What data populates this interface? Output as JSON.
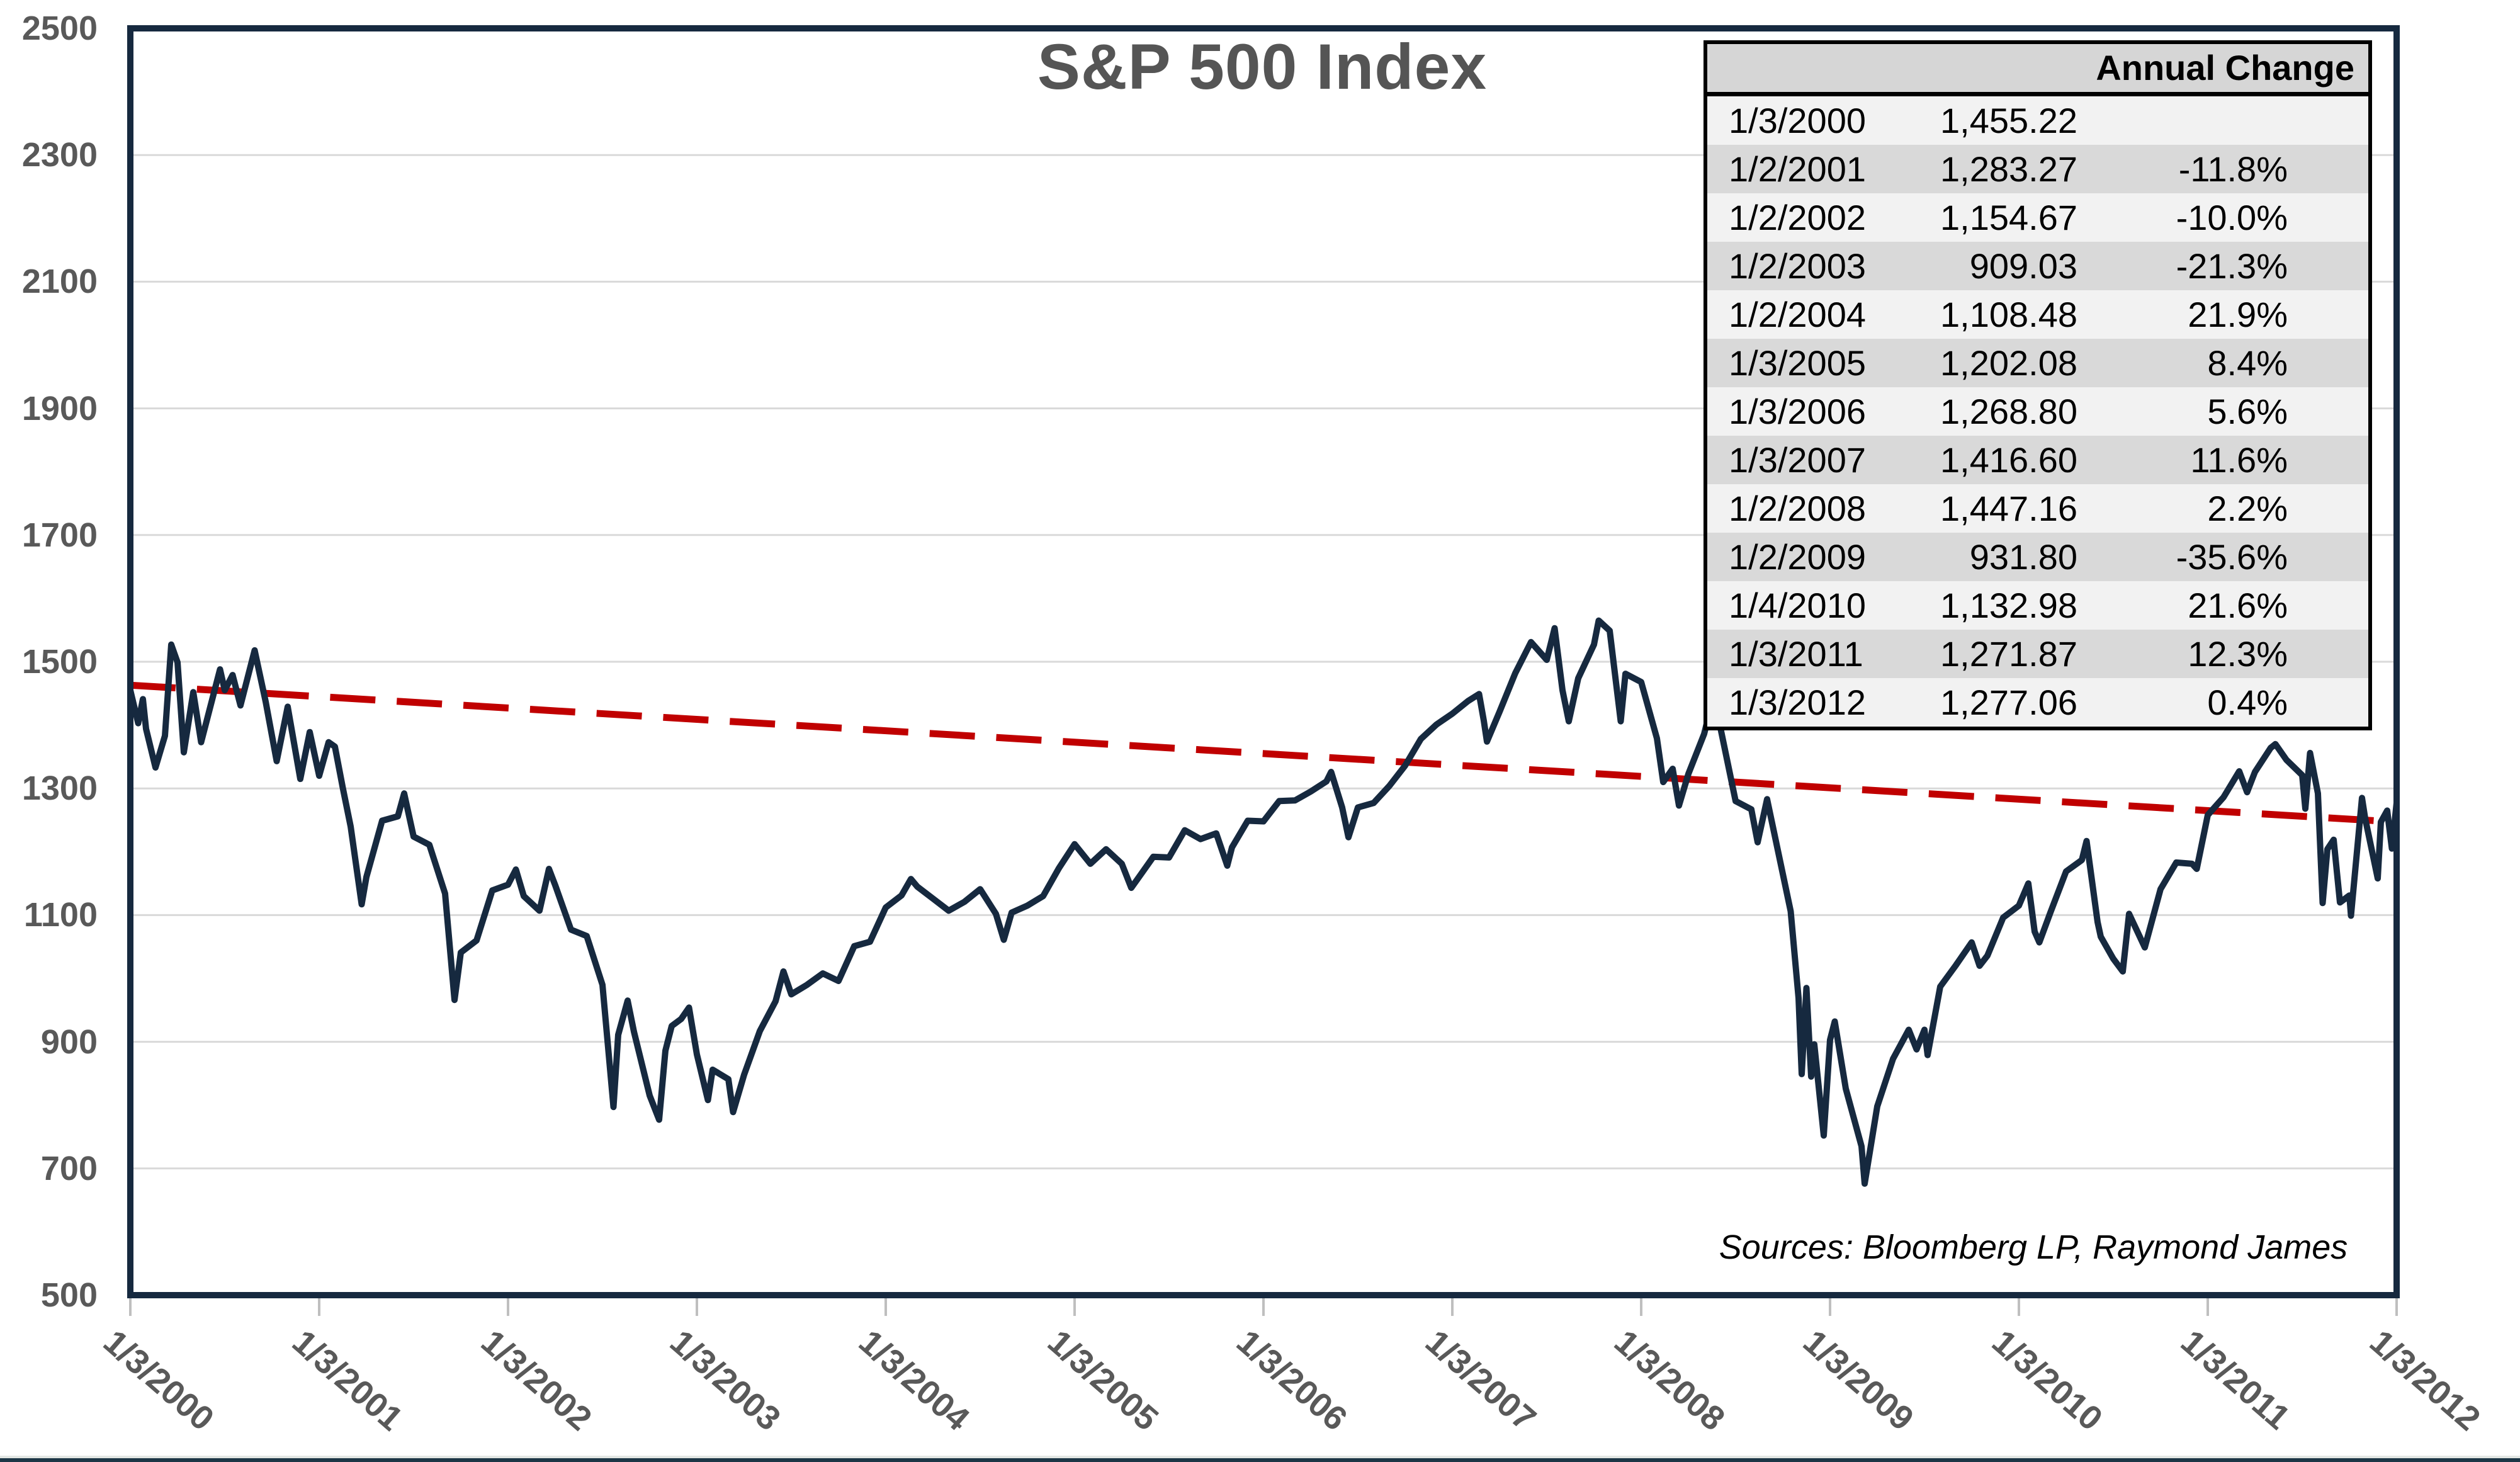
{
  "chart": {
    "title": "S&P 500 Index",
    "source_note": "Sources: Bloomberg LP, Raymond James",
    "colors": {
      "price_line": "#16293F",
      "trend_line": "#C00000",
      "plot_border": "#16293F",
      "gridline": "#D9D9D9",
      "axis_tick": "#BFBFBF",
      "axis_text": "#595959",
      "title_text": "#555555",
      "table_header_bg": "#D6D6D6",
      "table_row_light": "#F2F2F2",
      "table_row_dark": "#D9D9D9",
      "table_border": "#000000"
    }
  },
  "table": {
    "header": "Annual Change",
    "rows": [
      {
        "date": "1/3/2000",
        "value": "1,455.22",
        "change": ""
      },
      {
        "date": "1/2/2001",
        "value": "1,283.27",
        "change": "-11.8%"
      },
      {
        "date": "1/2/2002",
        "value": "1,154.67",
        "change": "-10.0%"
      },
      {
        "date": "1/2/2003",
        "value": "909.03",
        "change": "-21.3%"
      },
      {
        "date": "1/2/2004",
        "value": "1,108.48",
        "change": "21.9%"
      },
      {
        "date": "1/3/2005",
        "value": "1,202.08",
        "change": "8.4%"
      },
      {
        "date": "1/3/2006",
        "value": "1,268.80",
        "change": "5.6%"
      },
      {
        "date": "1/3/2007",
        "value": "1,416.60",
        "change": "11.6%"
      },
      {
        "date": "1/2/2008",
        "value": "1,447.16",
        "change": "2.2%"
      },
      {
        "date": "1/2/2009",
        "value": "931.80",
        "change": "-35.6%"
      },
      {
        "date": "1/4/2010",
        "value": "1,132.98",
        "change": "21.6%"
      },
      {
        "date": "1/3/2011",
        "value": "1,271.87",
        "change": "12.3%"
      },
      {
        "date": "1/3/2012",
        "value": "1,277.06",
        "change": "0.4%"
      }
    ]
  },
  "chart_data": {
    "type": "line",
    "title": "S&P 500 Index",
    "xlabel": "",
    "ylabel": "",
    "grid": "horizontal",
    "legend": "none",
    "x_axis": {
      "labels": [
        "1/3/2000",
        "1/3/2001",
        "1/3/2002",
        "1/3/2003",
        "1/3/2004",
        "1/3/2005",
        "1/3/2006",
        "1/3/2007",
        "1/3/2008",
        "1/3/2009",
        "1/3/2010",
        "1/3/2011",
        "1/3/2012"
      ],
      "unit": "months since 1/3/2000",
      "range": [
        0,
        144
      ],
      "label_rotation_deg": 41
    },
    "y_axis": {
      "min": 500,
      "max": 2500,
      "tick_step": 200,
      "ticks": [
        500,
        700,
        900,
        1100,
        1300,
        1500,
        1700,
        1900,
        2100,
        2300,
        2500
      ]
    },
    "annual_values": [
      {
        "date": "1/3/2000",
        "close": 1455.22,
        "annual_change_pct": null
      },
      {
        "date": "1/2/2001",
        "close": 1283.27,
        "annual_change_pct": -11.8
      },
      {
        "date": "1/2/2002",
        "close": 1154.67,
        "annual_change_pct": -10.0
      },
      {
        "date": "1/2/2003",
        "close": 909.03,
        "annual_change_pct": -21.3
      },
      {
        "date": "1/2/2004",
        "close": 1108.48,
        "annual_change_pct": 21.9
      },
      {
        "date": "1/3/2005",
        "close": 1202.08,
        "annual_change_pct": 8.4
      },
      {
        "date": "1/3/2006",
        "close": 1268.8,
        "annual_change_pct": 5.6
      },
      {
        "date": "1/3/2007",
        "close": 1416.6,
        "annual_change_pct": 11.6
      },
      {
        "date": "1/2/2008",
        "close": 1447.16,
        "annual_change_pct": 2.2
      },
      {
        "date": "1/2/2009",
        "close": 931.8,
        "annual_change_pct": -35.6
      },
      {
        "date": "1/4/2010",
        "close": 1132.98,
        "annual_change_pct": 21.6
      },
      {
        "date": "1/3/2011",
        "close": 1271.87,
        "annual_change_pct": 12.3
      },
      {
        "date": "1/3/2012",
        "close": 1277.06,
        "annual_change_pct": 0.4
      }
    ],
    "series": [
      {
        "name": "S&P 500 index level",
        "color": "#16293F",
        "points": [
          [
            0,
            1455
          ],
          [
            0.5,
            1403
          ],
          [
            0.8,
            1441
          ],
          [
            1,
            1394
          ],
          [
            1.6,
            1333
          ],
          [
            2.2,
            1383
          ],
          [
            2.6,
            1527
          ],
          [
            3,
            1499
          ],
          [
            3.4,
            1357
          ],
          [
            4,
            1452
          ],
          [
            4.5,
            1373
          ],
          [
            5,
            1421
          ],
          [
            5.7,
            1488
          ],
          [
            6,
            1455
          ],
          [
            6.5,
            1479
          ],
          [
            7,
            1431
          ],
          [
            7.9,
            1518
          ],
          [
            8.6,
            1437
          ],
          [
            9.3,
            1343
          ],
          [
            10,
            1429
          ],
          [
            10.8,
            1315
          ],
          [
            11.4,
            1389
          ],
          [
            12,
            1320
          ],
          [
            12.6,
            1373
          ],
          [
            13,
            1366
          ],
          [
            13.5,
            1301
          ],
          [
            14,
            1240
          ],
          [
            14.7,
            1117
          ],
          [
            15,
            1160
          ],
          [
            16,
            1249
          ],
          [
            17,
            1256
          ],
          [
            17.4,
            1292
          ],
          [
            18,
            1224
          ],
          [
            19,
            1211
          ],
          [
            20,
            1134
          ],
          [
            20.6,
            966
          ],
          [
            21,
            1041
          ],
          [
            22,
            1060
          ],
          [
            23,
            1139
          ],
          [
            24,
            1148
          ],
          [
            24.5,
            1172
          ],
          [
            25,
            1130
          ],
          [
            26,
            1107
          ],
          [
            26.6,
            1173
          ],
          [
            27,
            1147
          ],
          [
            28,
            1077
          ],
          [
            29,
            1067
          ],
          [
            30,
            990
          ],
          [
            30.7,
            797
          ],
          [
            31,
            911
          ],
          [
            31.6,
            965
          ],
          [
            32,
            916
          ],
          [
            33,
            815
          ],
          [
            33.6,
            777
          ],
          [
            34,
            886
          ],
          [
            34.4,
            925
          ],
          [
            35,
            936
          ],
          [
            35.5,
            954
          ],
          [
            36,
            880
          ],
          [
            36.7,
            808
          ],
          [
            37,
            856
          ],
          [
            38,
            841
          ],
          [
            38.3,
            789
          ],
          [
            39,
            848
          ],
          [
            40,
            917
          ],
          [
            41,
            964
          ],
          [
            41.5,
            1011
          ],
          [
            42,
            975
          ],
          [
            43,
            990
          ],
          [
            44,
            1008
          ],
          [
            45,
            996
          ],
          [
            46,
            1051
          ],
          [
            47,
            1058
          ],
          [
            48,
            1112
          ],
          [
            49,
            1131
          ],
          [
            49.6,
            1157
          ],
          [
            50,
            1145
          ],
          [
            51,
            1126
          ],
          [
            52,
            1107
          ],
          [
            53,
            1121
          ],
          [
            54,
            1141
          ],
          [
            55,
            1102
          ],
          [
            55.5,
            1061
          ],
          [
            56,
            1104
          ],
          [
            57,
            1115
          ],
          [
            58,
            1130
          ],
          [
            59,
            1174
          ],
          [
            60,
            1212
          ],
          [
            61,
            1181
          ],
          [
            62,
            1204
          ],
          [
            63,
            1181
          ],
          [
            63.6,
            1143
          ],
          [
            64,
            1157
          ],
          [
            65,
            1192
          ],
          [
            66,
            1191
          ],
          [
            67,
            1234
          ],
          [
            68,
            1220
          ],
          [
            69,
            1229
          ],
          [
            69.7,
            1178
          ],
          [
            70,
            1207
          ],
          [
            71,
            1249
          ],
          [
            72,
            1248
          ],
          [
            73,
            1280
          ],
          [
            74,
            1281
          ],
          [
            75,
            1295
          ],
          [
            76,
            1311
          ],
          [
            76.3,
            1326
          ],
          [
            77,
            1270
          ],
          [
            77.4,
            1223
          ],
          [
            78,
            1270
          ],
          [
            79,
            1277
          ],
          [
            80,
            1304
          ],
          [
            81,
            1336
          ],
          [
            82,
            1378
          ],
          [
            83,
            1401
          ],
          [
            84,
            1418
          ],
          [
            85,
            1438
          ],
          [
            85.7,
            1449
          ],
          [
            86,
            1407
          ],
          [
            86.2,
            1374
          ],
          [
            87,
            1421
          ],
          [
            88,
            1482
          ],
          [
            89,
            1531
          ],
          [
            90,
            1503
          ],
          [
            90.5,
            1553
          ],
          [
            91,
            1455
          ],
          [
            91.4,
            1406
          ],
          [
            92,
            1474
          ],
          [
            93,
            1527
          ],
          [
            93.3,
            1565
          ],
          [
            94,
            1549
          ],
          [
            94.7,
            1406
          ],
          [
            95,
            1481
          ],
          [
            96,
            1468
          ],
          [
            97,
            1379
          ],
          [
            97.4,
            1310
          ],
          [
            98,
            1331
          ],
          [
            98.4,
            1273
          ],
          [
            99,
            1323
          ],
          [
            100,
            1386
          ],
          [
            100.4,
            1426
          ],
          [
            101,
            1400
          ],
          [
            102,
            1280
          ],
          [
            103,
            1267
          ],
          [
            103.4,
            1215
          ],
          [
            104,
            1283
          ],
          [
            105,
            1165
          ],
          [
            105.5,
            1106
          ],
          [
            106,
            969
          ],
          [
            106.2,
            849
          ],
          [
            106.5,
            985
          ],
          [
            106.8,
            845
          ],
          [
            107,
            896
          ],
          [
            107.6,
            752
          ],
          [
            108,
            903
          ],
          [
            108.3,
            932
          ],
          [
            109,
            826
          ],
          [
            110,
            735
          ],
          [
            110.2,
            676
          ],
          [
            111,
            798
          ],
          [
            112,
            873
          ],
          [
            113,
            919
          ],
          [
            113.5,
            888
          ],
          [
            114,
            919
          ],
          [
            114.2,
            879
          ],
          [
            115,
            987
          ],
          [
            116,
            1021
          ],
          [
            117,
            1057
          ],
          [
            117.5,
            1020
          ],
          [
            118,
            1036
          ],
          [
            119,
            1096
          ],
          [
            120,
            1115
          ],
          [
            120.6,
            1150
          ],
          [
            121,
            1074
          ],
          [
            121.3,
            1057
          ],
          [
            122,
            1104
          ],
          [
            123,
            1169
          ],
          [
            124,
            1187
          ],
          [
            124.3,
            1217
          ],
          [
            125,
            1089
          ],
          [
            125.2,
            1066
          ],
          [
            126,
            1031
          ],
          [
            126.6,
            1011
          ],
          [
            127,
            1102
          ],
          [
            128,
            1049
          ],
          [
            129,
            1141
          ],
          [
            130,
            1183
          ],
          [
            131,
            1181
          ],
          [
            131.3,
            1173
          ],
          [
            132,
            1258
          ],
          [
            133,
            1286
          ],
          [
            134,
            1327
          ],
          [
            134.5,
            1294
          ],
          [
            135,
            1326
          ],
          [
            136,
            1364
          ],
          [
            136.3,
            1370
          ],
          [
            137,
            1345
          ],
          [
            138,
            1321
          ],
          [
            138.2,
            1268
          ],
          [
            138.5,
            1356
          ],
          [
            139,
            1292
          ],
          [
            139.3,
            1119
          ],
          [
            139.6,
            1204
          ],
          [
            140,
            1219
          ],
          [
            140.4,
            1120
          ],
          [
            141,
            1131
          ],
          [
            141.1,
            1099
          ],
          [
            141.8,
            1285
          ],
          [
            142,
            1253
          ],
          [
            142.8,
            1158
          ],
          [
            143,
            1247
          ],
          [
            143.4,
            1265
          ],
          [
            143.7,
            1205
          ],
          [
            144,
            1277
          ]
        ]
      }
    ],
    "trendline": {
      "name": "linear trend",
      "color": "#C00000",
      "style": "dashed",
      "points": [
        [
          0,
          1463
        ],
        [
          144,
          1247
        ]
      ]
    }
  }
}
